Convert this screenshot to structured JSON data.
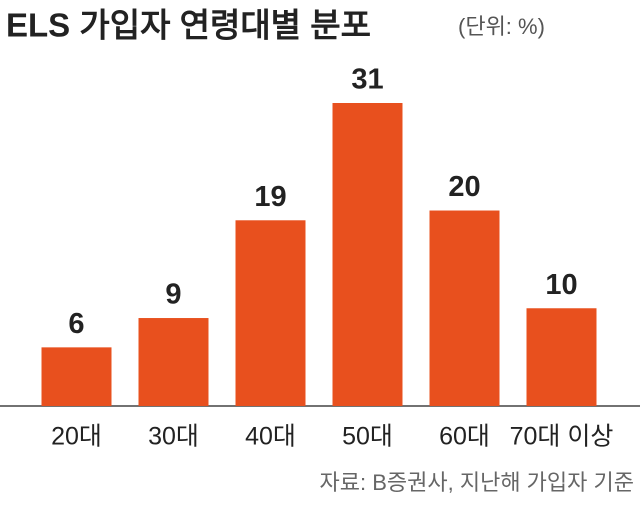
{
  "chart_data": {
    "type": "bar",
    "title": "ELS 가입자 연령대별 분포",
    "subtitle": "(단위: %)",
    "categories": [
      "20대",
      "30대",
      "40대",
      "50대",
      "60대",
      "70대 이상"
    ],
    "values": [
      6,
      9,
      19,
      31,
      20,
      10
    ],
    "color": "#e8501e",
    "source": "자료: B증권사, 지난해 가입자 기준"
  }
}
